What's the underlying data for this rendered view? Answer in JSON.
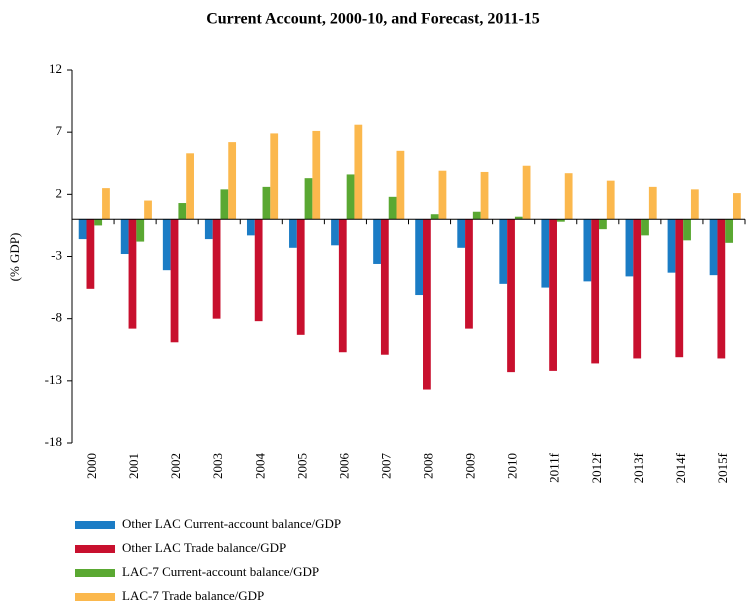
{
  "chart_data": {
    "type": "bar",
    "title": "Current Account, 2000-10, and Forecast, 2011-15",
    "y_label": "(% GDP)",
    "categories": [
      "2000",
      "2001",
      "2002",
      "2003",
      "2004",
      "2005",
      "2006",
      "2007",
      "2008",
      "2009",
      "2010",
      "2011f",
      "2012f",
      "2013f",
      "2014f",
      "2015f"
    ],
    "series": [
      {
        "name": "Other LAC Current-account balance/GDP",
        "color": "#1b7cc5",
        "values": [
          -1.6,
          -2.8,
          -4.1,
          -1.6,
          -1.3,
          -2.3,
          -2.1,
          -3.6,
          -6.1,
          -2.3,
          -5.2,
          -5.5,
          -5.0,
          -4.6,
          -4.3,
          -4.5
        ]
      },
      {
        "name": "Other LAC Trade balance/GDP",
        "color": "#c8102e",
        "values": [
          -5.6,
          -8.8,
          -9.9,
          -8.0,
          -8.2,
          -9.3,
          -10.7,
          -10.9,
          -13.7,
          -8.8,
          -12.3,
          -12.2,
          -11.6,
          -11.2,
          -11.1,
          -11.2
        ]
      },
      {
        "name": "LAC-7 Current-account balance/GDP",
        "color": "#5aa832",
        "values": [
          -0.5,
          -1.8,
          1.3,
          2.4,
          2.6,
          3.3,
          3.6,
          1.8,
          0.4,
          0.6,
          0.2,
          -0.2,
          -0.8,
          -1.3,
          -1.7,
          -1.9
        ]
      },
      {
        "name": "LAC-7 Trade balance/GDP",
        "color": "#fbb84d",
        "values": [
          2.5,
          1.5,
          5.3,
          6.2,
          6.9,
          7.1,
          7.6,
          5.5,
          3.9,
          3.8,
          4.3,
          3.7,
          3.1,
          2.6,
          2.4,
          2.1
        ]
      }
    ],
    "ylim": [
      -18,
      12
    ],
    "yticks": [
      12,
      7,
      2,
      -3,
      -8,
      -13,
      -18
    ],
    "grid": false,
    "legend": "bottom"
  }
}
